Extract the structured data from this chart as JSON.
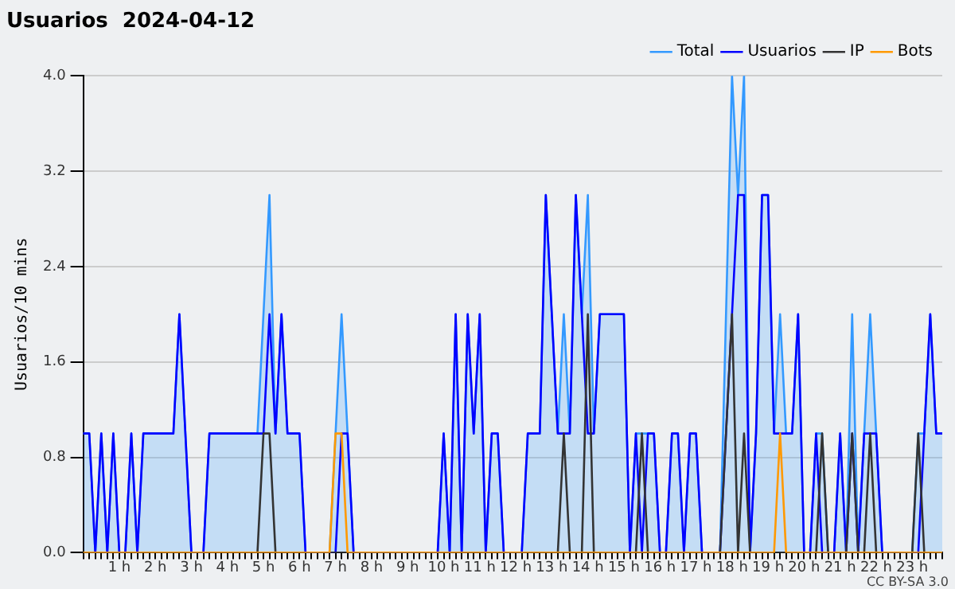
{
  "chart_data": {
    "type": "line",
    "title": "Usuarios  2024-04-12",
    "ylabel": "Usuarios/10 mins",
    "categories": [
      null,
      null,
      null,
      null,
      null,
      null,
      "1 h",
      null,
      null,
      null,
      null,
      null,
      "2 h",
      null,
      null,
      null,
      null,
      null,
      "3 h",
      null,
      null,
      null,
      null,
      null,
      "4 h",
      null,
      null,
      null,
      null,
      null,
      "5 h",
      null,
      null,
      null,
      null,
      null,
      "6 h",
      null,
      null,
      null,
      null,
      null,
      "7 h",
      null,
      null,
      null,
      null,
      null,
      "8 h",
      null,
      null,
      null,
      null,
      null,
      "9 h",
      null,
      null,
      null,
      null,
      null,
      "10 h",
      null,
      null,
      null,
      null,
      null,
      "11 h",
      null,
      null,
      null,
      null,
      null,
      "12 h",
      null,
      null,
      null,
      null,
      null,
      "13 h",
      null,
      null,
      null,
      null,
      null,
      "14 h",
      null,
      null,
      null,
      null,
      null,
      "15 h",
      null,
      null,
      null,
      null,
      null,
      "16 h",
      null,
      null,
      null,
      null,
      null,
      "17 h",
      null,
      null,
      null,
      null,
      null,
      "18 h",
      null,
      null,
      null,
      null,
      null,
      "19 h",
      null,
      null,
      null,
      null,
      null,
      "20 h",
      null,
      null,
      null,
      null,
      null,
      "21 h",
      null,
      null,
      null,
      null,
      null,
      "22 h",
      null,
      null,
      null,
      null,
      null,
      "23 h",
      null,
      null,
      null,
      null,
      null
    ],
    "series": [
      {
        "name": "Total",
        "type": "area",
        "color": "#3399ff",
        "values": [
          1,
          1,
          0,
          1,
          0,
          1,
          0,
          0,
          1,
          0,
          1,
          1,
          1,
          1,
          1,
          1,
          2,
          1,
          0,
          0,
          0,
          1,
          1,
          1,
          1,
          1,
          1,
          1,
          1,
          1,
          2,
          3,
          1,
          2,
          1,
          1,
          1,
          0,
          0,
          0,
          0,
          0,
          1,
          2,
          1,
          0,
          0,
          0,
          0,
          0,
          0,
          0,
          0,
          0,
          0,
          0,
          0,
          0,
          0,
          0,
          1,
          0,
          2,
          0,
          2,
          1,
          2,
          0,
          1,
          1,
          0,
          0,
          0,
          0,
          1,
          1,
          1,
          3,
          2,
          1,
          2,
          1,
          3,
          2,
          3,
          1,
          2,
          2,
          2,
          2,
          2,
          0,
          1,
          1,
          1,
          1,
          0,
          0,
          1,
          1,
          0,
          1,
          1,
          0,
          0,
          0,
          0,
          2,
          4,
          3,
          4,
          0,
          1,
          3,
          3,
          1,
          2,
          1,
          1,
          2,
          0,
          0,
          1,
          1,
          0,
          0,
          1,
          0,
          2,
          0,
          1,
          2,
          1,
          0,
          0,
          0,
          0,
          0,
          0,
          1,
          1,
          2,
          1,
          1
        ]
      },
      {
        "name": "Usuarios",
        "type": "line",
        "color": "#0000ff",
        "values": [
          1,
          1,
          0,
          1,
          0,
          1,
          0,
          0,
          1,
          0,
          1,
          1,
          1,
          1,
          1,
          1,
          2,
          1,
          0,
          0,
          0,
          1,
          1,
          1,
          1,
          1,
          1,
          1,
          1,
          1,
          1,
          2,
          1,
          2,
          1,
          1,
          1,
          0,
          0,
          0,
          0,
          0,
          0,
          1,
          1,
          0,
          0,
          0,
          0,
          0,
          0,
          0,
          0,
          0,
          0,
          0,
          0,
          0,
          0,
          0,
          1,
          0,
          2,
          0,
          2,
          1,
          2,
          0,
          1,
          1,
          0,
          0,
          0,
          0,
          1,
          1,
          1,
          3,
          2,
          1,
          1,
          1,
          3,
          2,
          1,
          1,
          2,
          2,
          2,
          2,
          2,
          0,
          1,
          0,
          1,
          1,
          0,
          0,
          1,
          1,
          0,
          1,
          1,
          0,
          0,
          0,
          0,
          1,
          2,
          3,
          3,
          0,
          1,
          3,
          3,
          1,
          1,
          1,
          1,
          2,
          0,
          0,
          1,
          0,
          0,
          0,
          1,
          0,
          1,
          0,
          1,
          1,
          1,
          0,
          0,
          0,
          0,
          0,
          0,
          0,
          1,
          2,
          1,
          1
        ]
      },
      {
        "name": "IP",
        "type": "line",
        "color": "#333333",
        "values": [
          0,
          0,
          0,
          0,
          0,
          0,
          0,
          0,
          0,
          0,
          0,
          0,
          0,
          0,
          0,
          0,
          0,
          0,
          0,
          0,
          0,
          0,
          0,
          0,
          0,
          0,
          0,
          0,
          0,
          0,
          1,
          1,
          0,
          0,
          0,
          0,
          0,
          0,
          0,
          0,
          0,
          0,
          0,
          0,
          0,
          0,
          0,
          0,
          0,
          0,
          0,
          0,
          0,
          0,
          0,
          0,
          0,
          0,
          0,
          0,
          0,
          0,
          0,
          0,
          0,
          0,
          0,
          0,
          0,
          0,
          0,
          0,
          0,
          0,
          0,
          0,
          0,
          0,
          0,
          0,
          1,
          0,
          0,
          0,
          2,
          0,
          0,
          0,
          0,
          0,
          0,
          0,
          0,
          1,
          0,
          0,
          0,
          0,
          0,
          0,
          0,
          0,
          0,
          0,
          0,
          0,
          0,
          1,
          2,
          0,
          1,
          0,
          0,
          0,
          0,
          0,
          0,
          0,
          0,
          0,
          0,
          0,
          0,
          1,
          0,
          0,
          0,
          0,
          1,
          0,
          0,
          1,
          0,
          0,
          0,
          0,
          0,
          0,
          0,
          1,
          0,
          0,
          0,
          0
        ]
      },
      {
        "name": "Bots",
        "type": "line",
        "color": "#ff9900",
        "values": [
          0,
          0,
          0,
          0,
          0,
          0,
          0,
          0,
          0,
          0,
          0,
          0,
          0,
          0,
          0,
          0,
          0,
          0,
          0,
          0,
          0,
          0,
          0,
          0,
          0,
          0,
          0,
          0,
          0,
          0,
          0,
          0,
          0,
          0,
          0,
          0,
          0,
          0,
          0,
          0,
          0,
          0,
          1,
          1,
          0,
          0,
          0,
          0,
          0,
          0,
          0,
          0,
          0,
          0,
          0,
          0,
          0,
          0,
          0,
          0,
          0,
          0,
          0,
          0,
          0,
          0,
          0,
          0,
          0,
          0,
          0,
          0,
          0,
          0,
          0,
          0,
          0,
          0,
          0,
          0,
          0,
          0,
          0,
          0,
          0,
          0,
          0,
          0,
          0,
          0,
          0,
          0,
          0,
          0,
          0,
          0,
          0,
          0,
          0,
          0,
          0,
          0,
          0,
          0,
          0,
          0,
          0,
          0,
          0,
          0,
          0,
          0,
          0,
          0,
          0,
          0,
          1,
          0,
          0,
          0,
          0,
          0,
          0,
          0,
          0,
          0,
          0,
          0,
          0,
          0,
          0,
          0,
          0,
          0,
          0,
          0,
          0,
          0,
          0,
          0,
          0,
          0,
          0,
          0
        ]
      }
    ],
    "ylim": [
      0,
      4
    ],
    "yticks": [
      {
        "value": 0,
        "label": "0.0"
      },
      0.8,
      1.6,
      2.4,
      3.2,
      {
        "value": 4,
        "label": "4.0"
      }
    ],
    "grid": "y",
    "legend": "top right",
    "marker": "none",
    "line_style": "solid",
    "annotations": [
      "CC BY-SA 3.0"
    ]
  }
}
